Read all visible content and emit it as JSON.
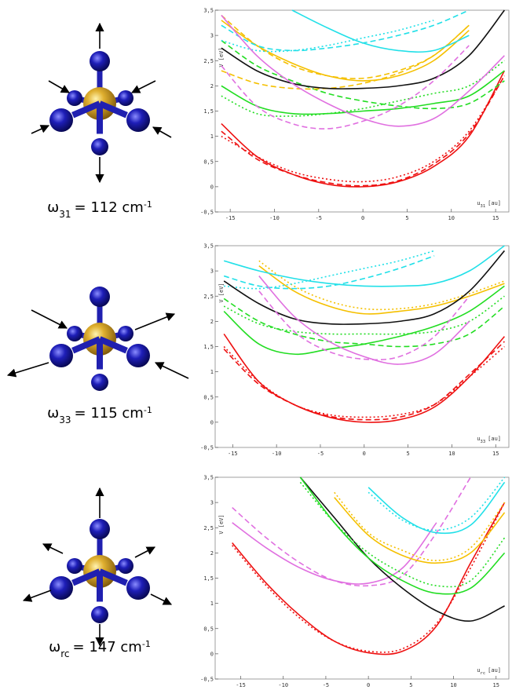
{
  "modes": [
    {
      "symbol": "ω",
      "sub": "31",
      "text": "= 112 cm",
      "sup": "-1"
    },
    {
      "symbol": "ω",
      "sub": "33",
      "text": "= 115 cm",
      "sup": "-1"
    },
    {
      "symbol": "ω",
      "sub": "rc",
      "text": "= 147 cm",
      "sup": "-1"
    }
  ],
  "chart_data": [
    {
      "type": "line",
      "ylabel": "V [eV]",
      "xlabel": {
        "symbol": "u",
        "sub": "31",
        "unit": "[au]"
      },
      "x": [
        -16,
        -12,
        -8,
        -4,
        0,
        4,
        8,
        12,
        16
      ],
      "xlim": [
        -16.7,
        16.5
      ],
      "ylim": [
        -0.5,
        3.5
      ],
      "xticks": [
        -15,
        -10,
        -5,
        0,
        5,
        10,
        15
      ],
      "yticks": [
        {
          "value": -0.5,
          "label": "-0,5"
        },
        0,
        {
          "value": 0.5,
          "label": "0,5"
        },
        1,
        {
          "value": 1.5,
          "label": "1,5"
        },
        2,
        {
          "value": 2.5,
          "label": "2,5"
        },
        3,
        {
          "value": 3.5,
          "label": "3,5"
        }
      ],
      "series": [
        {
          "color": "#ee1111",
          "dash": "solid",
          "values": [
            1.25,
            0.6,
            0.25,
            0.05,
            0,
            0.1,
            0.4,
            1.0,
            2.3
          ]
        },
        {
          "color": "#ee1111",
          "dash": "dashed",
          "values": [
            1.1,
            0.55,
            0.25,
            0.08,
            0.02,
            0.12,
            0.45,
            1.05,
            2.2
          ]
        },
        {
          "color": "#ee1111",
          "dash": "dotted",
          "values": [
            1.0,
            0.6,
            0.3,
            0.15,
            0.1,
            0.2,
            0.5,
            1.1,
            2.2
          ]
        },
        {
          "color": "#22dd22",
          "dash": "solid",
          "values": [
            2.0,
            1.6,
            1.45,
            1.45,
            1.5,
            1.55,
            1.65,
            1.8,
            2.3
          ]
        },
        {
          "color": "#22dd22",
          "dash": "dashed",
          "values": [
            2.9,
            2.4,
            2.1,
            1.85,
            1.7,
            1.6,
            1.55,
            1.65,
            2.1
          ]
        },
        {
          "color": "#22dd22",
          "dash": "dotted",
          "values": [
            1.8,
            1.45,
            1.4,
            1.45,
            1.55,
            1.7,
            1.85,
            2.0,
            2.5
          ]
        },
        {
          "color": "#f5c000",
          "dash": "solid",
          "values": [
            3.3,
            2.8,
            2.45,
            2.2,
            2.1,
            2.2,
            2.5,
            3.1,
            null
          ]
        },
        {
          "color": "#f5c000",
          "dash": "dashed",
          "values": [
            3.4,
            2.8,
            2.4,
            2.2,
            2.15,
            2.3,
            2.6,
            3.2,
            null
          ]
        },
        {
          "color": "#f5c000",
          "dash": "dashed",
          "values": [
            2.3,
            2.05,
            1.95,
            1.95,
            2.05,
            2.25,
            2.6,
            3.2,
            null
          ]
        },
        {
          "color": "#22e0e8",
          "dash": "solid",
          "values": [
            null,
            null,
            3.5,
            3.15,
            2.85,
            2.7,
            2.7,
            3.0,
            null
          ]
        },
        {
          "color": "#22e0e8",
          "dash": "dashed",
          "values": [
            3.2,
            2.8,
            2.7,
            2.75,
            2.85,
            3.0,
            3.2,
            3.5,
            null
          ]
        },
        {
          "color": "#22e0e8",
          "dash": "dotted",
          "values": [
            2.9,
            2.7,
            2.7,
            2.8,
            2.95,
            3.1,
            3.3,
            null,
            null
          ]
        },
        {
          "color": "#111111",
          "dash": "solid",
          "values": [
            2.75,
            2.3,
            2.05,
            1.95,
            1.95,
            2.0,
            2.15,
            2.6,
            3.5
          ]
        },
        {
          "color": "#e070e0",
          "dash": "solid",
          "values": [
            3.4,
            2.6,
            2.05,
            1.65,
            1.35,
            1.2,
            1.35,
            1.9,
            2.6
          ]
        },
        {
          "color": "#e070e0",
          "dash": "dashed",
          "values": [
            2.4,
            1.6,
            1.25,
            1.15,
            1.3,
            1.6,
            2.1,
            2.8,
            null
          ]
        }
      ]
    },
    {
      "type": "line",
      "ylabel": "V [eV]",
      "xlabel": {
        "symbol": "u",
        "sub": "33",
        "unit": "[au]"
      },
      "x": [
        -16,
        -12,
        -8,
        -4,
        0,
        4,
        8,
        12,
        16
      ],
      "xlim": [
        -17,
        16.5
      ],
      "ylim": [
        -0.5,
        3.5
      ],
      "xticks": [
        -15,
        -10,
        -5,
        0,
        5,
        10,
        15
      ],
      "yticks": [
        {
          "value": -0.5,
          "label": "-0,5"
        },
        0,
        {
          "value": 0.5,
          "label": "0,5"
        },
        1,
        {
          "value": 1.5,
          "label": "1,5"
        },
        2,
        {
          "value": 2.5,
          "label": "2,5"
        },
        3,
        {
          "value": 3.5,
          "label": "3,5"
        }
      ],
      "series": [
        {
          "color": "#ee1111",
          "dash": "solid",
          "values": [
            1.75,
            0.8,
            0.35,
            0.1,
            0,
            0.05,
            0.3,
            0.9,
            1.7
          ]
        },
        {
          "color": "#ee1111",
          "dash": "dashed",
          "values": [
            1.45,
            0.75,
            0.35,
            0.12,
            0.05,
            0.1,
            0.35,
            0.95,
            1.6
          ]
        },
        {
          "color": "#ee1111",
          "dash": "dotted",
          "values": [
            1.5,
            0.8,
            0.35,
            0.15,
            0.1,
            0.15,
            0.35,
            0.9,
            1.5
          ]
        },
        {
          "color": "#22dd22",
          "dash": "solid",
          "values": [
            2.2,
            1.55,
            1.35,
            1.45,
            1.55,
            1.7,
            1.9,
            2.2,
            2.7
          ]
        },
        {
          "color": "#22dd22",
          "dash": "dashed",
          "values": [
            2.45,
            2.0,
            1.75,
            1.6,
            1.55,
            1.5,
            1.55,
            1.75,
            2.3
          ]
        },
        {
          "color": "#22dd22",
          "dash": "dotted",
          "values": [
            2.3,
            1.95,
            1.8,
            1.75,
            1.75,
            1.75,
            1.8,
            2.0,
            2.5
          ]
        },
        {
          "color": "#f5c000",
          "dash": "solid",
          "values": [
            null,
            3.1,
            2.6,
            2.3,
            2.15,
            2.2,
            2.3,
            2.5,
            2.75
          ]
        },
        {
          "color": "#f5c000",
          "dash": "dotted",
          "values": [
            null,
            3.2,
            2.7,
            2.4,
            2.25,
            2.25,
            2.35,
            2.55,
            2.8
          ]
        },
        {
          "color": "#22e0e8",
          "dash": "solid",
          "values": [
            3.2,
            3.0,
            2.85,
            2.75,
            2.7,
            2.7,
            2.75,
            3.0,
            3.5
          ]
        },
        {
          "color": "#22e0e8",
          "dash": "dashed",
          "values": [
            2.9,
            2.7,
            2.65,
            2.7,
            2.85,
            3.05,
            3.3,
            null,
            null
          ]
        },
        {
          "color": "#22e0e8",
          "dash": "dotted",
          "values": [
            2.7,
            2.65,
            2.75,
            2.9,
            3.05,
            3.2,
            3.4,
            null,
            null
          ]
        },
        {
          "color": "#111111",
          "dash": "solid",
          "values": [
            2.8,
            2.35,
            2.05,
            1.95,
            1.95,
            2.0,
            2.15,
            2.6,
            3.4
          ]
        },
        {
          "color": "#e070e0",
          "dash": "solid",
          "values": [
            null,
            2.9,
            2.1,
            1.6,
            1.3,
            1.15,
            1.35,
            2.0,
            null
          ]
        },
        {
          "color": "#e070e0",
          "dash": "dashed",
          "values": [
            null,
            2.6,
            1.8,
            1.4,
            1.25,
            1.3,
            1.7,
            2.5,
            null
          ]
        }
      ]
    },
    {
      "type": "line",
      "ylabel": "V [eV]",
      "xlabel": {
        "symbol": "u",
        "sub": "rc",
        "unit": "[au]"
      },
      "x": [
        -16,
        -12,
        -8,
        -4,
        0,
        4,
        8,
        12,
        16
      ],
      "xlim": [
        -18,
        16.5
      ],
      "ylim": [
        -0.5,
        3.5
      ],
      "xticks": [
        -15,
        -10,
        -5,
        0,
        5,
        10,
        15
      ],
      "yticks": [
        {
          "value": -0.5,
          "label": "-0,5"
        },
        0,
        {
          "value": 0.5,
          "label": "0,5"
        },
        1,
        {
          "value": 1.5,
          "label": "1,5"
        },
        2,
        {
          "value": 2.5,
          "label": "2,5"
        },
        3,
        {
          "value": 3.5,
          "label": "3,5"
        }
      ],
      "series": [
        {
          "color": "#ee1111",
          "dash": "solid",
          "values": [
            2.2,
            1.4,
            0.75,
            0.25,
            0.02,
            0.05,
            0.55,
            1.8,
            3.0
          ]
        },
        {
          "color": "#ee1111",
          "dash": "dotted",
          "values": [
            2.15,
            1.35,
            0.7,
            0.25,
            0.05,
            0.1,
            0.6,
            1.7,
            3.0
          ]
        },
        {
          "color": "#e070e0",
          "dash": "solid",
          "values": [
            2.6,
            2.1,
            1.7,
            1.45,
            1.4,
            1.7,
            2.6,
            null,
            null
          ]
        },
        {
          "color": "#e070e0",
          "dash": "dashed",
          "values": [
            2.9,
            2.3,
            1.8,
            1.45,
            1.35,
            1.55,
            2.4,
            3.5,
            null
          ]
        },
        {
          "color": "#111111",
          "dash": "solid",
          "values": [
            null,
            null,
            3.5,
            2.7,
            1.9,
            1.3,
            0.85,
            0.65,
            0.95
          ]
        },
        {
          "color": "#22dd22",
          "dash": "solid",
          "values": [
            null,
            null,
            3.5,
            2.6,
            1.9,
            1.45,
            1.2,
            1.3,
            2.0
          ]
        },
        {
          "color": "#22dd22",
          "dash": "dotted",
          "values": [
            null,
            null,
            3.4,
            2.6,
            2.0,
            1.6,
            1.35,
            1.45,
            2.3
          ]
        },
        {
          "color": "#f5c000",
          "dash": "solid",
          "values": [
            null,
            null,
            null,
            3.1,
            2.35,
            1.95,
            1.8,
            2.0,
            2.8
          ]
        },
        {
          "color": "#f5c000",
          "dash": "dotted",
          "values": [
            null,
            null,
            null,
            3.2,
            2.4,
            2.05,
            1.85,
            2.1,
            3.0
          ]
        },
        {
          "color": "#22e0e8",
          "dash": "solid",
          "values": [
            null,
            null,
            null,
            null,
            3.3,
            2.7,
            2.4,
            2.55,
            3.4
          ]
        },
        {
          "color": "#22e0e8",
          "dash": "dotted",
          "values": [
            null,
            null,
            null,
            null,
            3.2,
            2.65,
            2.45,
            2.7,
            3.5
          ]
        }
      ]
    }
  ]
}
